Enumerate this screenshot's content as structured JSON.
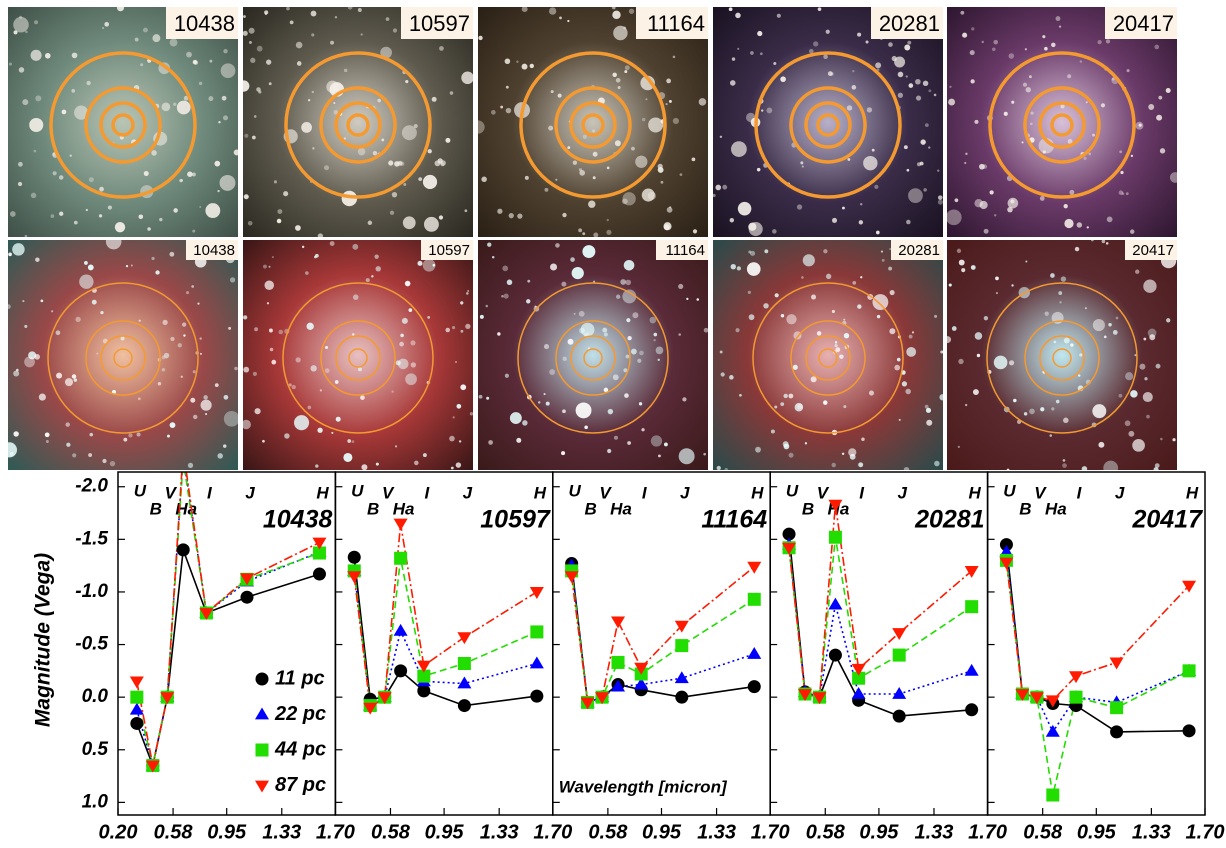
{
  "images": {
    "top": [
      "10438",
      "10597",
      "11164",
      "20281",
      "20417"
    ],
    "bottom": [
      "10438",
      "10597",
      "11164",
      "20281",
      "20417"
    ]
  },
  "chart_data": {
    "type": "line",
    "ylabel": "Magnitude (Vega)",
    "xlabel": "Wavelength [micron]",
    "x": [
      0.33,
      0.44,
      0.54,
      0.65,
      0.81,
      1.09,
      1.59
    ],
    "filters": [
      "U",
      "B",
      "V",
      "Ha",
      "I",
      "J",
      "H"
    ],
    "xlim": [
      0.2,
      1.7
    ],
    "ylim": [
      1.12,
      -2.14
    ],
    "yticks": [
      {
        "value": -2,
        "label": "-2.0"
      },
      -1.5,
      {
        "value": -1,
        "label": "-1.0"
      },
      -0.5,
      {
        "value": 0,
        "label": "0.0"
      },
      0.5,
      {
        "value": 1,
        "label": "1.0"
      }
    ],
    "series": [
      {
        "name": "11 pc",
        "color": "#000000",
        "marker": "circle",
        "dash": "solid"
      },
      {
        "name": "22 pc",
        "color": "#0000ff",
        "marker": "triangle-up",
        "dash": "dotted"
      },
      {
        "name": "44 pc",
        "color": "#22dd00",
        "marker": "square",
        "dash": "dashed"
      },
      {
        "name": "87 pc",
        "color": "#ff1a00",
        "marker": "triangle-down",
        "dash": "dashdot"
      }
    ],
    "panels": [
      {
        "title": "10438",
        "xticks": [
          {
            "value": 0.2,
            "label": "0.20"
          },
          0.58,
          0.95,
          1.33,
          {
            "value": 1.7,
            "label": "1.70"
          }
        ],
        "values": [
          [
            0.25,
            0.65,
            0.0,
            -1.4,
            -0.8,
            -0.95,
            -1.17
          ],
          [
            0.12,
            0.65,
            0.0,
            -2.3,
            -0.8,
            -1.1,
            -1.38
          ],
          [
            0.0,
            0.65,
            0.0,
            -2.25,
            -0.8,
            -1.12,
            -1.37
          ],
          [
            -0.15,
            0.65,
            0.0,
            -2.35,
            -0.8,
            -1.13,
            -1.47
          ]
        ]
      },
      {
        "title": "10597",
        "xticks": [
          0.58,
          0.95,
          1.33,
          {
            "value": 1.7,
            "label": "1.70"
          }
        ],
        "values": [
          [
            -1.33,
            0.02,
            0.0,
            -0.25,
            -0.06,
            0.08,
            -0.01
          ],
          [
            -1.2,
            0.08,
            0.0,
            -0.63,
            -0.15,
            -0.13,
            -0.32
          ],
          [
            -1.2,
            0.08,
            0.0,
            -1.32,
            -0.2,
            -0.32,
            -0.62
          ],
          [
            -1.15,
            0.1,
            0.0,
            -1.65,
            -0.3,
            -0.57,
            -1.0
          ]
        ]
      },
      {
        "title": "11164",
        "xticks": [
          0.58,
          0.95,
          1.33,
          {
            "value": 1.7,
            "label": "1.70"
          }
        ],
        "values": [
          [
            -1.27,
            0.05,
            0.0,
            -0.12,
            -0.07,
            0.0,
            -0.1
          ],
          [
            -1.25,
            0.05,
            0.0,
            -0.1,
            -0.12,
            -0.18,
            -0.41
          ],
          [
            -1.2,
            0.05,
            0.0,
            -0.33,
            -0.22,
            -0.49,
            -0.93
          ],
          [
            -1.15,
            0.05,
            0.0,
            -0.72,
            -0.28,
            -0.68,
            -1.24
          ]
        ]
      },
      {
        "title": "20281",
        "xticks": [
          0.58,
          0.95,
          1.33,
          {
            "value": 1.7,
            "label": "1.70"
          }
        ],
        "values": [
          [
            -1.55,
            -0.05,
            0.0,
            -0.4,
            0.03,
            0.18,
            0.12
          ],
          [
            -1.45,
            -0.05,
            0.0,
            -0.88,
            -0.03,
            -0.03,
            -0.25
          ],
          [
            -1.42,
            -0.03,
            0.0,
            -1.52,
            -0.18,
            -0.4,
            -0.86
          ],
          [
            -1.42,
            -0.03,
            0.0,
            -1.83,
            -0.27,
            -0.61,
            -1.2
          ]
        ]
      },
      {
        "title": "20417",
        "xticks": [
          0.58,
          0.95,
          1.33,
          {
            "value": 1.7,
            "label": "1.70"
          }
        ],
        "values": [
          [
            -1.45,
            -0.03,
            0.0,
            0.06,
            0.08,
            0.33,
            0.32
          ],
          [
            -1.38,
            -0.03,
            0.0,
            0.33,
            0.0,
            0.05,
            -0.25
          ],
          [
            -1.3,
            -0.03,
            0.0,
            0.93,
            0.0,
            0.1,
            -0.25
          ],
          [
            -1.28,
            -0.03,
            0.0,
            0.03,
            -0.2,
            -0.33,
            -1.06
          ]
        ]
      }
    ]
  }
}
